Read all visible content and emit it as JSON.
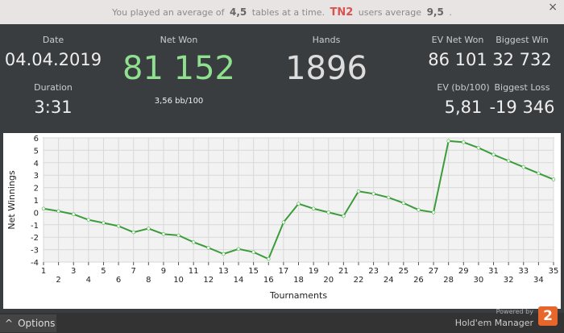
{
  "banner": {
    "pre": "You played an average of",
    "tables": "4,5",
    "mid": "tables at a time.",
    "site": "TN2",
    "mid2": "users average",
    "site_avg": "9,5",
    "end": ".",
    "close": "×"
  },
  "stats": {
    "date_label": "Date",
    "date": "04.04.2019",
    "duration_label": "Duration",
    "duration": "3:31",
    "net_won_label": "Net Won",
    "net_won": "81 152",
    "net_bb": "3,56 bb/100",
    "hands_label": "Hands",
    "hands": "1896",
    "ev_net_label": "EV Net Won",
    "ev_net": "86 101",
    "big_win_label": "Biggest Win",
    "big_win": "32 732",
    "ev_bb_label": "EV (bb/100)",
    "ev_bb": "5,81",
    "big_loss_label": "Biggest Loss",
    "big_loss": "-19 346"
  },
  "footer": {
    "options": "Options",
    "powered": "Powered by",
    "brand": "Hold'em Manager",
    "brand_num": "2"
  },
  "chart_data": {
    "type": "line",
    "x_label": "Tournaments",
    "y_label": "Net Winnings",
    "color": "#3c9c3c",
    "grid": true,
    "x": [
      1,
      2,
      3,
      4,
      5,
      6,
      7,
      8,
      9,
      10,
      11,
      12,
      13,
      14,
      15,
      16,
      17,
      18,
      19,
      20,
      21,
      22,
      23,
      24,
      25,
      26,
      27,
      28,
      29,
      30,
      31,
      32,
      33,
      34,
      35
    ],
    "values": [
      0.3,
      0.1,
      -0.15,
      -0.6,
      -0.85,
      -1.1,
      -1.6,
      -1.3,
      -1.75,
      -1.85,
      -2.4,
      -2.85,
      -3.35,
      -2.95,
      -3.2,
      -3.75,
      -0.8,
      0.7,
      0.3,
      0.0,
      -0.3,
      1.7,
      1.5,
      1.2,
      0.75,
      0.2,
      0.0,
      5.75,
      5.65,
      5.2,
      4.65,
      4.15,
      3.65,
      3.15,
      2.65
    ],
    "xlim": [
      1,
      35
    ],
    "xticks": [
      1,
      2,
      3,
      4,
      5,
      6,
      7,
      8,
      9,
      10,
      11,
      12,
      13,
      14,
      15,
      16,
      17,
      18,
      19,
      20,
      21,
      22,
      23,
      24,
      25,
      26,
      27,
      28,
      29,
      30,
      31,
      32,
      33,
      34,
      35
    ],
    "ylim": [
      -4,
      6
    ],
    "yticks": [
      -4,
      -3,
      -2,
      -1,
      0,
      1,
      2,
      3,
      4,
      5,
      6
    ]
  }
}
